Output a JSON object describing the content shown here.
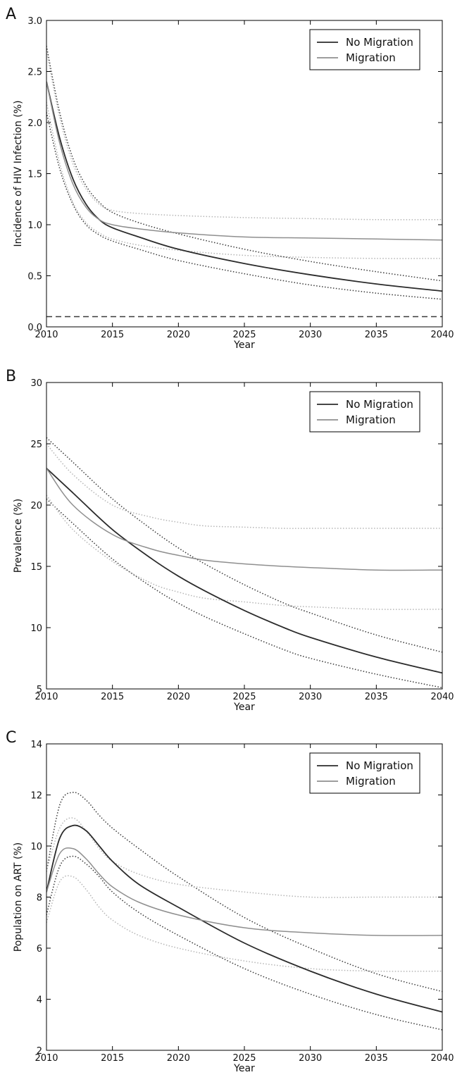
{
  "colors": {
    "no_migration": "#2b2b2b",
    "migration": "#8f8f8f",
    "no_migration_bounds": "#3a3a3a",
    "migration_bounds": "#b5b5b5",
    "reference": "#3a3a3a"
  },
  "chart_data": [
    {
      "type": "line",
      "panel_label": "A",
      "xlabel": "Year",
      "ylabel": "Incidence of HIV Infection (%)",
      "xlim": [
        2010,
        2040
      ],
      "ylim": [
        0,
        3.0
      ],
      "xticks": [
        2010,
        2015,
        2020,
        2025,
        2030,
        2035,
        2040
      ],
      "yticks": [
        0.0,
        0.5,
        1.0,
        1.5,
        2.0,
        2.5,
        3.0
      ],
      "ytick_labels": [
        "0.0",
        "0.5",
        "1.0",
        "1.5",
        "2.0",
        "2.5",
        "3.0"
      ],
      "legend": [
        "No Migration",
        "Migration"
      ],
      "legend_position": "top-right",
      "grid": false,
      "x": [
        2010,
        2011,
        2012,
        2013,
        2014,
        2015,
        2017,
        2020,
        2025,
        2030,
        2035,
        2040
      ],
      "series": [
        {
          "name": "No Migration",
          "style": "solid",
          "color_key": "no_migration",
          "values": [
            2.4,
            1.85,
            1.45,
            1.2,
            1.05,
            0.97,
            0.88,
            0.76,
            0.62,
            0.51,
            0.42,
            0.35
          ]
        },
        {
          "name": "Migration",
          "style": "solid",
          "color_key": "migration",
          "values": [
            2.4,
            1.8,
            1.4,
            1.17,
            1.05,
            1.0,
            0.96,
            0.92,
            0.88,
            0.87,
            0.86,
            0.85
          ]
        },
        {
          "style": "dotted",
          "color_key": "no_migration_bounds",
          "values": [
            2.75,
            2.1,
            1.65,
            1.38,
            1.22,
            1.12,
            1.02,
            0.91,
            0.76,
            0.64,
            0.54,
            0.45
          ]
        },
        {
          "style": "dotted",
          "color_key": "no_migration_bounds",
          "values": [
            2.1,
            1.55,
            1.2,
            1.0,
            0.9,
            0.84,
            0.76,
            0.65,
            0.52,
            0.41,
            0.33,
            0.27
          ]
        },
        {
          "style": "dotted",
          "color_key": "migration_bounds",
          "values": [
            2.7,
            2.05,
            1.6,
            1.35,
            1.2,
            1.14,
            1.11,
            1.09,
            1.07,
            1.06,
            1.05,
            1.05
          ]
        },
        {
          "style": "dotted",
          "color_key": "migration_bounds",
          "values": [
            2.2,
            1.6,
            1.22,
            1.02,
            0.92,
            0.86,
            0.8,
            0.75,
            0.7,
            0.68,
            0.67,
            0.67
          ]
        }
      ],
      "reference_line": {
        "y": 0.1,
        "style": "dashed",
        "color_key": "reference"
      }
    },
    {
      "type": "line",
      "panel_label": "B",
      "xlabel": "Year",
      "ylabel": "Prevalence (%)",
      "xlim": [
        2010,
        2040
      ],
      "ylim": [
        5,
        30
      ],
      "xticks": [
        2010,
        2015,
        2020,
        2025,
        2030,
        2035,
        2040
      ],
      "yticks": [
        5,
        10,
        15,
        20,
        25,
        30
      ],
      "ytick_labels": [
        "5",
        "10",
        "15",
        "20",
        "25",
        "30"
      ],
      "legend": [
        "No Migration",
        "Migration"
      ],
      "legend_position": "top-right",
      "grid": false,
      "x": [
        2010,
        2012,
        2015,
        2018,
        2020,
        2022,
        2025,
        2028,
        2030,
        2035,
        2040
      ],
      "series": [
        {
          "name": "No Migration",
          "style": "solid",
          "color_key": "no_migration",
          "values": [
            23.0,
            21.0,
            18.0,
            15.6,
            14.2,
            13.0,
            11.4,
            10.0,
            9.2,
            7.6,
            6.3
          ]
        },
        {
          "name": "Migration",
          "style": "solid",
          "color_key": "migration",
          "values": [
            23.0,
            20.0,
            17.6,
            16.4,
            15.9,
            15.5,
            15.2,
            15.0,
            14.9,
            14.7,
            14.7
          ]
        },
        {
          "style": "dotted",
          "color_key": "no_migration_bounds",
          "values": [
            25.5,
            23.5,
            20.5,
            18.0,
            16.5,
            15.2,
            13.5,
            12.0,
            11.2,
            9.4,
            8.0
          ]
        },
        {
          "style": "dotted",
          "color_key": "no_migration_bounds",
          "values": [
            20.5,
            18.5,
            15.6,
            13.3,
            12.0,
            10.9,
            9.5,
            8.2,
            7.5,
            6.2,
            5.1
          ]
        },
        {
          "style": "dotted",
          "color_key": "migration_bounds",
          "values": [
            25.0,
            22.5,
            20.0,
            19.0,
            18.6,
            18.3,
            18.2,
            18.1,
            18.1,
            18.1,
            18.1
          ]
        },
        {
          "style": "dotted",
          "color_key": "migration_bounds",
          "values": [
            20.8,
            18.0,
            15.4,
            13.6,
            12.9,
            12.4,
            12.1,
            11.8,
            11.7,
            11.5,
            11.5
          ]
        }
      ]
    },
    {
      "type": "line",
      "panel_label": "C",
      "xlabel": "Year",
      "ylabel": "Population on ART (%)",
      "xlim": [
        2010,
        2040
      ],
      "ylim": [
        2,
        14
      ],
      "xticks": [
        2010,
        2015,
        2020,
        2025,
        2030,
        2035,
        2040
      ],
      "yticks": [
        2,
        4,
        6,
        8,
        10,
        12,
        14
      ],
      "ytick_labels": [
        "2",
        "4",
        "6",
        "8",
        "10",
        "12",
        "14"
      ],
      "legend": [
        "No Migration",
        "Migration"
      ],
      "legend_position": "top-right",
      "grid": false,
      "x": [
        2010,
        2011,
        2012,
        2013,
        2014,
        2015,
        2017,
        2020,
        2025,
        2030,
        2035,
        2040
      ],
      "series": [
        {
          "name": "No Migration",
          "style": "solid",
          "color_key": "no_migration",
          "values": [
            8.2,
            10.3,
            10.8,
            10.6,
            10.0,
            9.4,
            8.5,
            7.6,
            6.2,
            5.1,
            4.2,
            3.5
          ]
        },
        {
          "name": "Migration",
          "style": "solid",
          "color_key": "migration",
          "values": [
            8.2,
            9.7,
            9.9,
            9.5,
            8.9,
            8.4,
            7.8,
            7.3,
            6.8,
            6.6,
            6.5,
            6.5
          ]
        },
        {
          "style": "dotted",
          "color_key": "no_migration_bounds",
          "values": [
            9.0,
            11.6,
            12.1,
            11.8,
            11.2,
            10.7,
            9.9,
            8.8,
            7.2,
            6.0,
            5.0,
            4.3
          ]
        },
        {
          "style": "dotted",
          "color_key": "no_migration_bounds",
          "values": [
            7.3,
            9.2,
            9.6,
            9.3,
            8.8,
            8.2,
            7.4,
            6.5,
            5.2,
            4.2,
            3.4,
            2.8
          ]
        },
        {
          "style": "dotted",
          "color_key": "migration_bounds",
          "values": [
            9.0,
            10.7,
            11.1,
            10.6,
            9.9,
            9.4,
            8.9,
            8.5,
            8.2,
            8.0,
            8.0,
            8.0
          ]
        },
        {
          "style": "dotted",
          "color_key": "migration_bounds",
          "values": [
            7.0,
            8.6,
            8.8,
            8.3,
            7.6,
            7.1,
            6.5,
            6.0,
            5.5,
            5.2,
            5.1,
            5.1
          ]
        }
      ]
    }
  ]
}
